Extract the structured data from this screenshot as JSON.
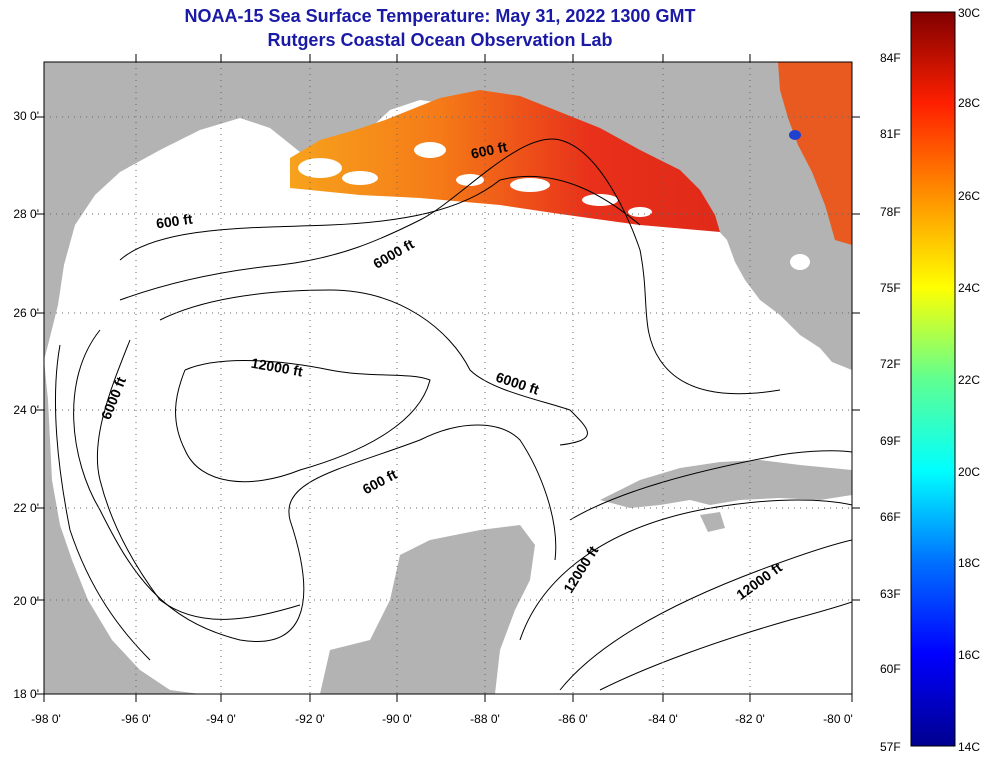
{
  "title": {
    "line1": "NOAA-15 Sea Surface Temperature:  May 31, 2022 1300 GMT",
    "line2": "Rutgers Coastal Ocean Observation Lab"
  },
  "colors": {
    "title": "#1a1aa6",
    "land": "#b3b3b3",
    "ocean_nodata": "#ffffff",
    "contour": "#000000"
  },
  "map": {
    "lat_labels": [
      "30 0'",
      "28 0'",
      "26 0'",
      "24 0'",
      "22 0'",
      "20 0'",
      "18 0'"
    ],
    "lon_labels": [
      "-98 0'",
      "-96 0'",
      "-94 0'",
      "-92 0'",
      "-90 0'",
      "-88 0'",
      "-86 0'",
      "-84 0'",
      "-82 0'",
      "-80 0'"
    ],
    "contours": [
      {
        "id": "c600a",
        "label": "600 ft"
      },
      {
        "id": "c600b",
        "label": "600 ft"
      },
      {
        "id": "c600c",
        "label": "600 ft"
      },
      {
        "id": "c6000a",
        "label": "6000 ft"
      },
      {
        "id": "c6000b",
        "label": "6000 ft"
      },
      {
        "id": "c6000c",
        "label": "6000 ft"
      },
      {
        "id": "c12000a",
        "label": "12000 ft"
      },
      {
        "id": "c12000b",
        "label": "12000 ft"
      },
      {
        "id": "c12000c",
        "label": "12000 ft"
      }
    ]
  },
  "colorbar": {
    "f_labels": [
      "84F",
      "81F",
      "78F",
      "75F",
      "72F",
      "69F",
      "66F",
      "63F",
      "60F",
      "57F"
    ],
    "c_labels": [
      "30C",
      "28C",
      "26C",
      "24C",
      "22C",
      "20C",
      "18C",
      "16C",
      "14C"
    ],
    "min_c": 14,
    "max_c": 30
  }
}
